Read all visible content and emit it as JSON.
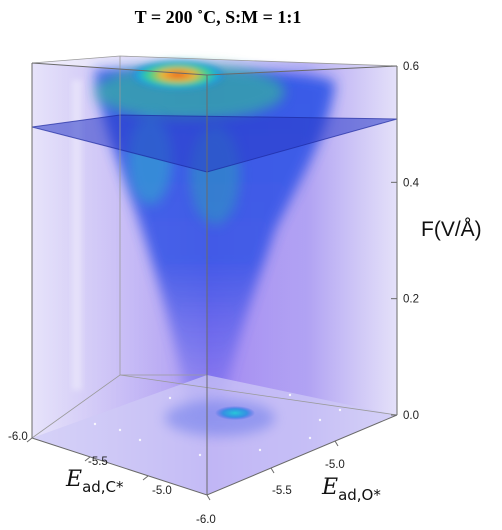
{
  "chart_data": {
    "type": "volume-3d",
    "title": "T = 200 ˚C, S:M = 1:1",
    "axes": {
      "z": {
        "label": "F(V/Å)",
        "ticks": [
          "0.0",
          "0.2",
          "0.4",
          "0.6"
        ],
        "range": [
          0.0,
          0.6
        ]
      },
      "x": {
        "label_main": "E",
        "label_sub": "ad,C*",
        "ticks": [
          "-6.0",
          "-5.5",
          "-5.0"
        ],
        "range": [
          -6.0,
          -5.0
        ]
      },
      "y": {
        "label_main": "E",
        "label_sub": "ad,O*",
        "ticks": [
          "-5.0",
          "-5.5",
          "-6.0"
        ],
        "range": [
          -6.0,
          -5.0
        ]
      }
    },
    "slice_plane_F": 0.5,
    "colormap": [
      "#6f3df0",
      "#2a55e6",
      "#1aa2e0",
      "#2fd28a",
      "#f0c23a",
      "#f04a1a"
    ],
    "hotspot": {
      "location": "top near back-left corner",
      "F": 0.6
    }
  }
}
